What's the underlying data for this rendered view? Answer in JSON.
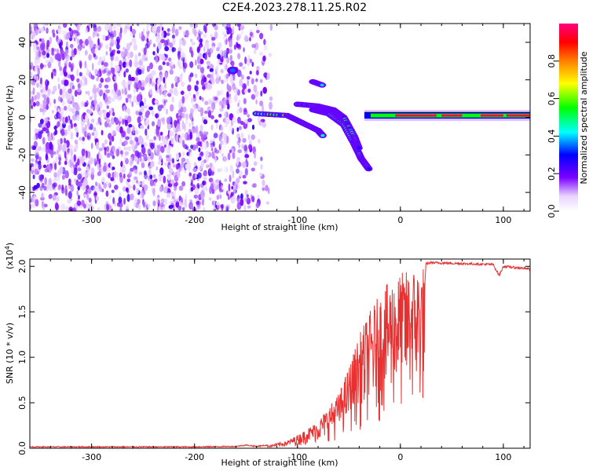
{
  "title": "C2E4.2023.278.11.25.R02",
  "chart_data": [
    {
      "type": "heatmap",
      "xlabel": "Height of straight line (km)",
      "ylabel": "Frequency (Hz)",
      "xlim": [
        -360,
        126
      ],
      "ylim": [
        -50,
        50
      ],
      "xticks": [
        -300,
        -200,
        -100,
        0,
        100
      ],
      "yticks": [
        -40,
        -20,
        0,
        20,
        40
      ],
      "colorbar": {
        "label": "Normalized spectral amplitude",
        "range": [
          0,
          1
        ],
        "ticks": [
          "0.0",
          "0.2",
          "0.4",
          "0.6",
          "0.8"
        ],
        "tick_values": [
          0.0,
          0.2,
          0.4,
          0.6,
          0.8
        ],
        "colors": [
          "#ffffff",
          "#e9d4ff",
          "#7a00ff",
          "#0000ff",
          "#00ffff",
          "#00ff00",
          "#ffff00",
          "#ff8000",
          "#ff0000",
          "#ff0080"
        ]
      },
      "noise_region_x": [
        -360,
        -125
      ],
      "features": [
        {
          "name": "bright-spot",
          "points": [
            [
              -163,
              25
            ]
          ],
          "amplitude": 0.35
        },
        {
          "name": "band-lower",
          "points": [
            [
              -140,
              2
            ],
            [
              -110,
              1
            ],
            [
              -95,
              -3
            ],
            [
              -80,
              -7
            ],
            [
              -75,
              -10
            ]
          ],
          "amplitude": 0.5
        },
        {
          "name": "band-middle",
          "points": [
            [
              -85,
              4
            ],
            [
              -70,
              2
            ],
            [
              -55,
              -4
            ],
            [
              -45,
              -14
            ],
            [
              -38,
              -22
            ],
            [
              -30,
              -28
            ]
          ],
          "amplitude": 0.45
        },
        {
          "name": "band-upper",
          "points": [
            [
              -100,
              7
            ],
            [
              -80,
              6
            ],
            [
              -65,
              4
            ],
            [
              -55,
              0
            ],
            [
              -45,
              -10
            ],
            [
              -40,
              -17
            ]
          ],
          "amplitude": 0.45
        },
        {
          "name": "blob-20hz",
          "points": [
            [
              -85,
              19
            ],
            [
              -75,
              17
            ]
          ],
          "amplitude": 0.35
        },
        {
          "name": "main-line",
          "points": [
            [
              -35,
              0
            ],
            [
              0,
              1
            ],
            [
              40,
              1
            ],
            [
              80,
              1
            ],
            [
              126,
              1
            ]
          ],
          "amplitude": 0.95
        }
      ]
    },
    {
      "type": "line",
      "xlabel": "Height of straight line (km)",
      "ylabel": "SNR (10 * v/v)",
      "y_multiplier": "(x10",
      "y_multiplier_exp": "4",
      "xlim": [
        -360,
        126
      ],
      "ylim": [
        0,
        20800
      ],
      "xticks": [
        -300,
        -200,
        -100,
        0,
        100
      ],
      "yticks": [
        0,
        5000,
        10000,
        15000,
        20000
      ],
      "ytick_labels": [
        "0.0",
        "0.5",
        "1.0",
        "1.5",
        "2.0"
      ],
      "color": "#e83030",
      "envelope": [
        [
          -360,
          150
        ],
        [
          -300,
          150
        ],
        [
          -200,
          150
        ],
        [
          -160,
          200
        ],
        [
          -150,
          350
        ],
        [
          -140,
          200
        ],
        [
          -125,
          400
        ],
        [
          -110,
          800
        ],
        [
          -95,
          1800
        ],
        [
          -80,
          3000
        ],
        [
          -70,
          4500
        ],
        [
          -60,
          6000
        ],
        [
          -50,
          9000
        ],
        [
          -40,
          12500
        ],
        [
          -30,
          15000
        ],
        [
          -20,
          17000
        ],
        [
          -10,
          18500
        ],
        [
          0,
          19300
        ],
        [
          10,
          19800
        ],
        [
          20,
          20200
        ],
        [
          30,
          20400
        ],
        [
          60,
          20300
        ],
        [
          90,
          20200
        ],
        [
          96,
          19000
        ],
        [
          100,
          20000
        ],
        [
          126,
          19700
        ]
      ]
    }
  ]
}
